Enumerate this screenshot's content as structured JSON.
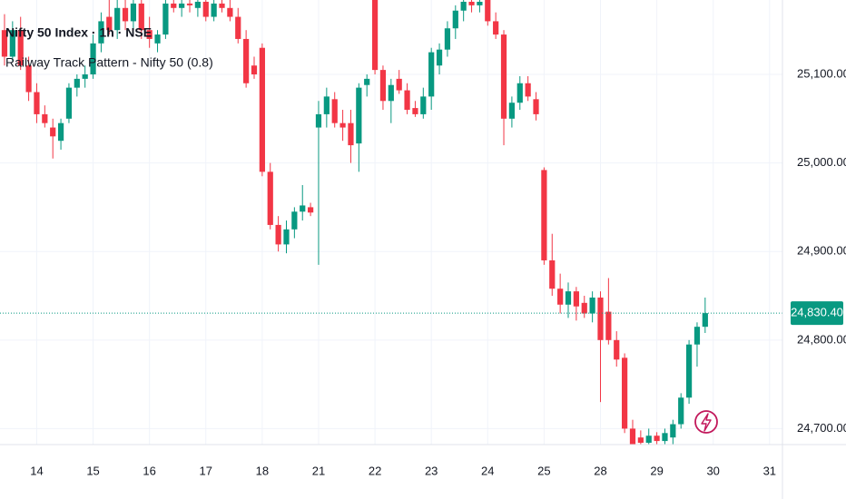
{
  "chart_data": {
    "type": "candlestick",
    "title": "Nifty 50 Index · 1h · NSE",
    "subtitle": "Railway Track Pattern - Nifty 50 (0.8)",
    "up_color": "#089981",
    "down_color": "#f23645",
    "grid": true,
    "xlim": [
      -0.56,
      96.6
    ],
    "xticks": [
      {
        "value": 4,
        "label": "14"
      },
      {
        "value": 11,
        "label": "15"
      },
      {
        "value": 18,
        "label": "16"
      },
      {
        "value": 25,
        "label": "17"
      },
      {
        "value": 32,
        "label": "18"
      },
      {
        "value": 39,
        "label": "21"
      },
      {
        "value": 46,
        "label": "22"
      },
      {
        "value": 53,
        "label": "23"
      },
      {
        "value": 60,
        "label": "24"
      },
      {
        "value": 67,
        "label": "25"
      },
      {
        "value": 74,
        "label": "28"
      },
      {
        "value": 81,
        "label": "29"
      },
      {
        "value": 88,
        "label": "30"
      },
      {
        "value": 95,
        "label": "31"
      }
    ],
    "ylim": [
      24682,
      25184
    ],
    "yticks": [
      {
        "value": 24700,
        "label": "24,700.00"
      },
      {
        "value": 24800,
        "label": "24,800.00"
      },
      {
        "value": 24900,
        "label": "24,900.00"
      },
      {
        "value": 25000,
        "label": "25,000.00"
      },
      {
        "value": 25100,
        "label": "25,100.00"
      }
    ],
    "last_price": {
      "value": 24830.4,
      "label": "24,830.40"
    },
    "open": [
      25150,
      25120,
      25150,
      25110,
      25080,
      25055,
      25040,
      25025,
      25050,
      25085,
      25095,
      25100,
      25135,
      25165,
      25150,
      25175,
      25160,
      25180,
      25150,
      25135,
      25145,
      25180,
      25175,
      25180,
      25175,
      25182,
      25165,
      25180,
      25175,
      25165,
      25140,
      25110,
      25130,
      24990,
      24930,
      24908,
      24925,
      24945,
      24950,
      25040,
      25055,
      25072,
      25045,
      25045,
      25022,
      25088,
      25184,
      25105,
      25070,
      25095,
      25082,
      25062,
      25055,
      25075,
      25110,
      25128,
      25152,
      25172,
      25182,
      25178,
      25184,
      25160,
      25145,
      25050,
      25068,
      25090,
      25072,
      24992,
      24890,
      24858,
      24840,
      24855,
      24842,
      24830,
      24848,
      24832,
      24800,
      24780,
      24700,
      24690,
      24684,
      24692,
      24686,
      24690,
      24705,
      24735,
      24795,
      24815
    ],
    "high": [
      25168,
      25160,
      25165,
      25120,
      25090,
      25065,
      25050,
      25050,
      25090,
      25100,
      25110,
      25145,
      25170,
      25184,
      25184,
      25184,
      25184,
      25184,
      25165,
      25150,
      25184,
      25184,
      25184,
      25184,
      25184,
      25184,
      25184,
      25184,
      25184,
      25175,
      25150,
      25120,
      25135,
      25000,
      24940,
      24935,
      24950,
      24975,
      24955,
      25070,
      25085,
      25080,
      25060,
      25060,
      25090,
      25100,
      25184,
      25110,
      25095,
      25105,
      25090,
      25070,
      25085,
      25130,
      25135,
      25160,
      25178,
      25184,
      25184,
      25184,
      25184,
      25170,
      25150,
      25075,
      25098,
      25098,
      25080,
      24995,
      24920,
      24875,
      24865,
      24860,
      24850,
      24855,
      24855,
      24870,
      24810,
      24785,
      24710,
      24698,
      24700,
      24696,
      24700,
      24710,
      24740,
      24800,
      24820,
      24848
    ],
    "low": [
      25110,
      25115,
      25105,
      25070,
      25045,
      25040,
      25005,
      25015,
      25045,
      25075,
      25085,
      25095,
      25125,
      25145,
      25140,
      25150,
      25150,
      25140,
      25130,
      25125,
      25140,
      25170,
      25165,
      25170,
      25165,
      25160,
      25160,
      25170,
      25160,
      25135,
      25085,
      25095,
      24985,
      24925,
      24900,
      24898,
      24915,
      24935,
      24940,
      24885,
      25040,
      25040,
      25025,
      25000,
      24990,
      25075,
      25100,
      25060,
      25045,
      25078,
      25055,
      25052,
      25050,
      25060,
      25100,
      25120,
      25140,
      25160,
      25170,
      25170,
      25155,
      25140,
      25020,
      25040,
      25060,
      25070,
      25048,
      24885,
      24850,
      24830,
      24825,
      24822,
      24825,
      24820,
      24730,
      24795,
      24770,
      24695,
      24682,
      24682,
      24682,
      24682,
      24682,
      24682,
      24700,
      24728,
      24770,
      24808
    ],
    "close": [
      25120,
      25150,
      25110,
      25080,
      25055,
      25045,
      25030,
      25045,
      25085,
      25095,
      25100,
      25135,
      25160,
      25150,
      25175,
      25160,
      25180,
      25150,
      25140,
      25145,
      25180,
      25175,
      25180,
      25178,
      25182,
      25165,
      25180,
      25175,
      25165,
      25140,
      25090,
      25100,
      24990,
      24930,
      24908,
      24925,
      24945,
      24952,
      24944,
      25055,
      25075,
      25045,
      25040,
      25020,
      25085,
      25095,
      25105,
      25070,
      25088,
      25082,
      25060,
      25055,
      25075,
      25125,
      25128,
      25152,
      25172,
      25182,
      25178,
      25182,
      25160,
      25145,
      25050,
      25068,
      25090,
      25075,
      25055,
      24890,
      24858,
      24840,
      24855,
      24838,
      24830,
      24848,
      24800,
      24800,
      24778,
      24700,
      24682,
      24684,
      24692,
      24686,
      24695,
      24705,
      24735,
      24795,
      24815,
      24830.4
    ]
  }
}
